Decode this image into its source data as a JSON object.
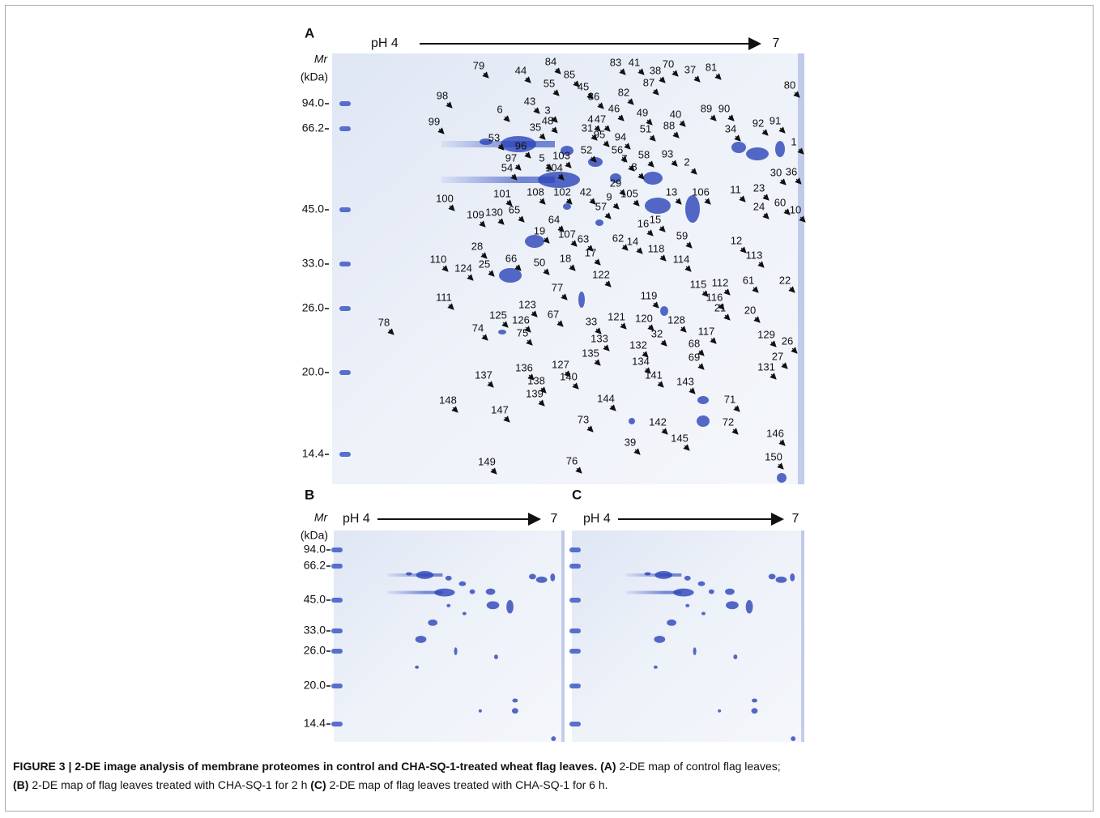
{
  "panels": [
    {
      "label": "A",
      "ph_start": "pH 4",
      "ph_end": "7",
      "mr_label": "Mr",
      "unit_label": "(kDa)",
      "markers": [
        "94.0",
        "66.2",
        "45.0",
        "33.0",
        "26.0",
        "20.0",
        "14.4"
      ],
      "spots": [
        "79",
        "44",
        "84",
        "85",
        "83",
        "41",
        "70",
        "38",
        "37",
        "81",
        "80",
        "98",
        "55",
        "45",
        "87",
        "82",
        "43",
        "86",
        "6",
        "3",
        "46",
        "49",
        "40",
        "89",
        "90",
        "4",
        "47",
        "48",
        "99",
        "88",
        "35",
        "31",
        "95",
        "51",
        "34",
        "92",
        "91",
        "53",
        "94",
        "1",
        "96",
        "5",
        "103",
        "52",
        "56",
        "7",
        "58",
        "93",
        "2",
        "97",
        "54",
        "104",
        "8",
        "30",
        "36",
        "29",
        "100",
        "101",
        "108",
        "102",
        "42",
        "9",
        "105",
        "13",
        "106",
        "11",
        "23",
        "57",
        "24",
        "60",
        "10",
        "109",
        "130",
        "65",
        "64",
        "107",
        "63",
        "62",
        "14",
        "16",
        "15",
        "59",
        "17",
        "12",
        "28",
        "19",
        "18",
        "118",
        "113",
        "110",
        "66",
        "50",
        "114",
        "25",
        "124",
        "122",
        "112",
        "115",
        "61",
        "22",
        "77",
        "119",
        "116",
        "111",
        "123",
        "21",
        "20",
        "125",
        "126",
        "67",
        "121",
        "120",
        "33",
        "128",
        "74",
        "75",
        "117",
        "32",
        "129",
        "26",
        "78",
        "133",
        "68",
        "132",
        "135",
        "69",
        "27",
        "134",
        "131",
        "136",
        "127",
        "137",
        "140",
        "141",
        "143",
        "138",
        "139",
        "148",
        "144",
        "71",
        "147",
        "73",
        "142",
        "72",
        "145",
        "39",
        "146",
        "150",
        "149",
        "76"
      ]
    },
    {
      "label": "B",
      "ph_start": "pH 4",
      "ph_end": "7",
      "mr_label": "Mr",
      "unit_label": "(kDa)",
      "markers": [
        "94.0",
        "66.2",
        "45.0",
        "33.0",
        "26.0",
        "20.0",
        "14.4"
      ]
    },
    {
      "label": "C",
      "ph_start": "pH 4",
      "ph_end": "7"
    }
  ],
  "caption": {
    "figure": "FIGURE 3 | 2-DE image analysis of membrane proteomes in control and CHA-SQ-1-treated wheat flag leaves.",
    "parts": [
      {
        "ref": "(A)",
        "text": "2-DE map of control flag leaves;"
      },
      {
        "ref": "(B)",
        "text": "2-DE map of flag leaves treated with CHA-SQ-1 for 2 h"
      },
      {
        "ref": "(C)",
        "text": "2-DE map of flag leaves treated with CHA-SQ-1 for 6 h."
      }
    ]
  }
}
